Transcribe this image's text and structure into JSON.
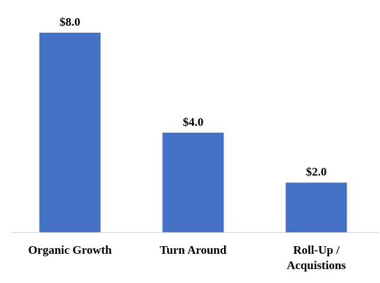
{
  "chart_data": {
    "type": "bar",
    "categories": [
      [
        "Organic Growth"
      ],
      [
        "Turn Around"
      ],
      [
        "Roll-Up /",
        "Acquistions"
      ]
    ],
    "values": [
      8.0,
      4.0,
      2.0
    ],
    "data_labels": [
      "$8.0",
      "$4.0",
      "$2.0"
    ],
    "title": "",
    "xlabel": "",
    "ylabel": "",
    "ylim": [
      0,
      8.0
    ],
    "grid": false,
    "legend": "none",
    "bar_color": "#4472C4",
    "axis_color": "#D9D9D9"
  }
}
